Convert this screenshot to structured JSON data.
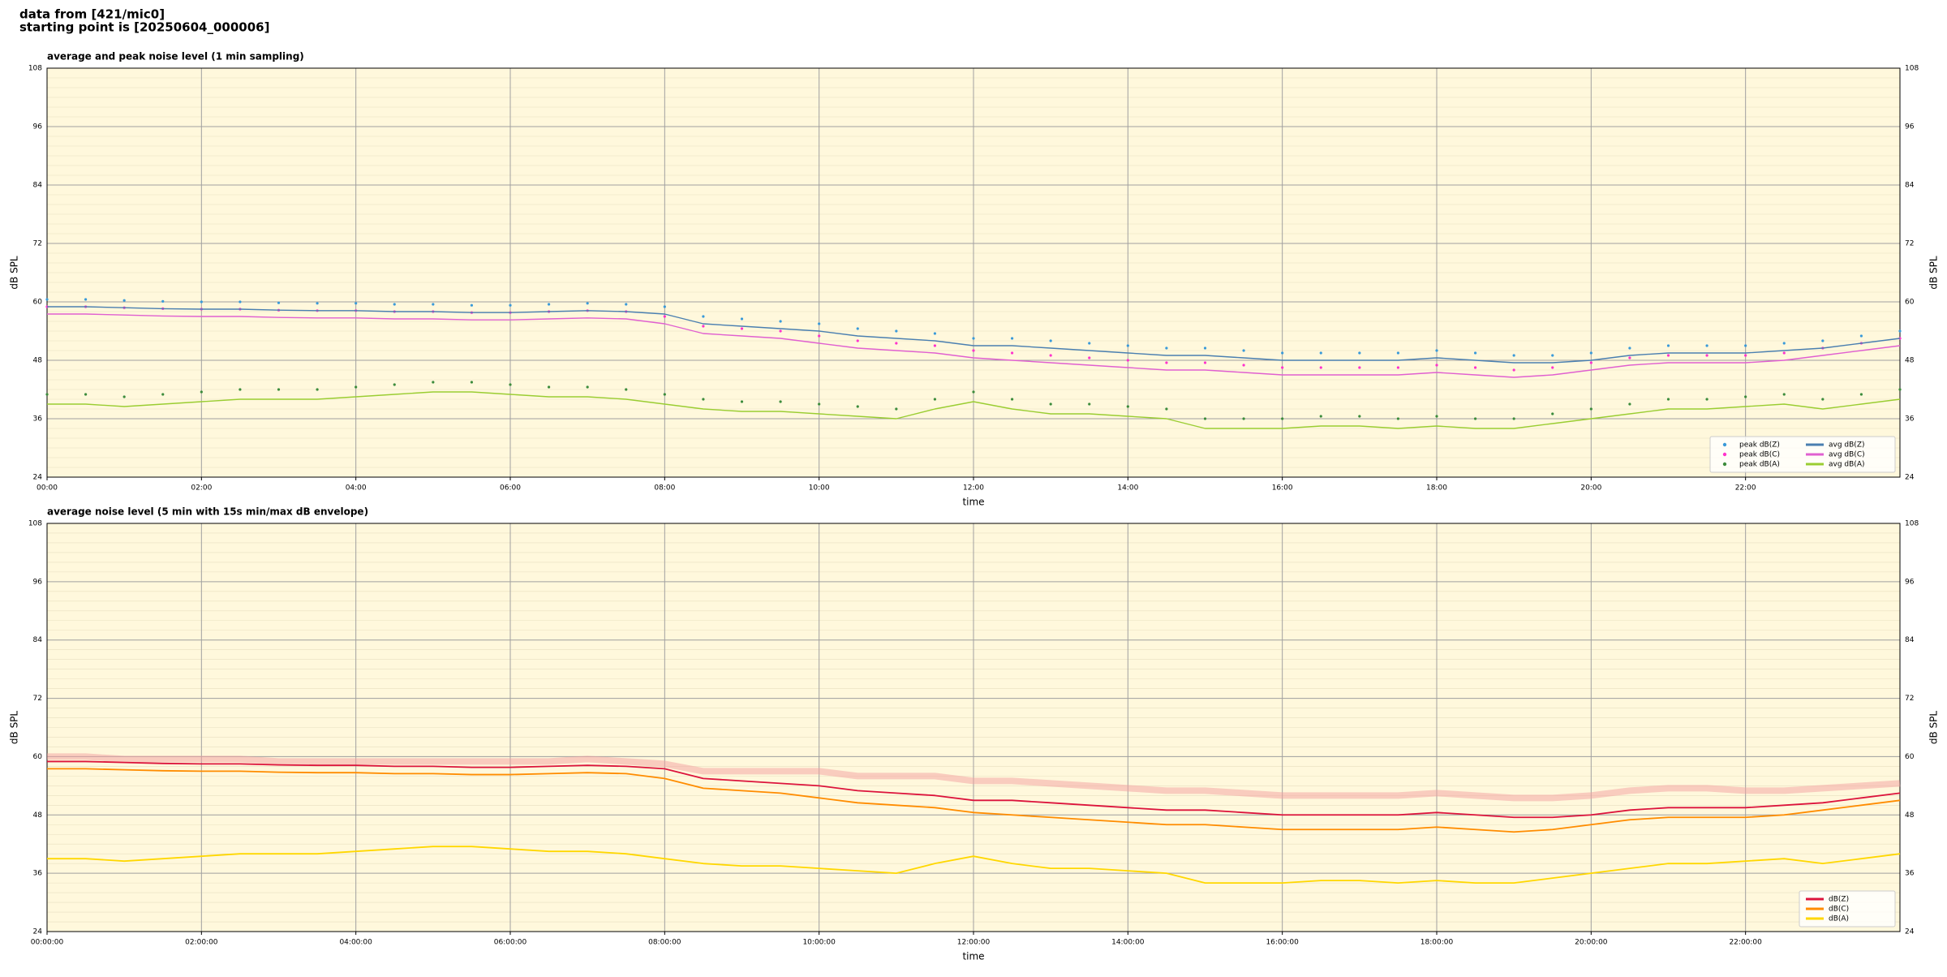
{
  "header": {
    "source": "data from [421/mic0]",
    "start": "starting point is [20250604_000006]"
  },
  "chart_data": [
    {
      "type": "line",
      "title": "average and peak noise level (1 min sampling)",
      "xlabel": "time",
      "ylabel": "dB SPL",
      "x": [
        0,
        0.5,
        1,
        1.5,
        2,
        2.5,
        3,
        3.5,
        4,
        4.5,
        5,
        5.5,
        6,
        6.5,
        7,
        7.5,
        8,
        8.5,
        9,
        9.5,
        10,
        10.5,
        11,
        11.5,
        12,
        12.5,
        13,
        13.5,
        14,
        14.5,
        15,
        15.5,
        16,
        16.5,
        17,
        17.5,
        18,
        18.5,
        19,
        19.5,
        20,
        20.5,
        21,
        21.5,
        22,
        22.5,
        23,
        23.5,
        24
      ],
      "xlim": [
        0,
        24
      ],
      "xticks": [
        {
          "value": 0,
          "label": "00:00"
        },
        {
          "value": 2,
          "label": "02:00"
        },
        {
          "value": 4,
          "label": "04:00"
        },
        {
          "value": 6,
          "label": "06:00"
        },
        {
          "value": 8,
          "label": "08:00"
        },
        {
          "value": 10,
          "label": "10:00"
        },
        {
          "value": 12,
          "label": "12:00"
        },
        {
          "value": 14,
          "label": "14:00"
        },
        {
          "value": 16,
          "label": "16:00"
        },
        {
          "value": 18,
          "label": "18:00"
        },
        {
          "value": 20,
          "label": "20:00"
        },
        {
          "value": 22,
          "label": "22:00"
        }
      ],
      "ylim": [
        24,
        108
      ],
      "yticks": [
        24,
        36,
        48,
        60,
        72,
        84,
        96,
        108
      ],
      "grid": true,
      "legend": "lower right",
      "series": [
        {
          "name": "peak dB(Z)",
          "kind": "scatter",
          "color": "#3a9ad9",
          "values": [
            60.5,
            60.5,
            60.3,
            60.1,
            60,
            60,
            59.8,
            59.7,
            59.7,
            59.5,
            59.5,
            59.3,
            59.3,
            59.5,
            59.7,
            59.5,
            59,
            57,
            56.5,
            56,
            55.5,
            54.5,
            54,
            53.5,
            52.5,
            52.5,
            52,
            51.5,
            51,
            50.5,
            50.5,
            50,
            49.5,
            49.5,
            49.5,
            49.5,
            50,
            49.5,
            49,
            49,
            49.5,
            50.5,
            51,
            51,
            51,
            51.5,
            52,
            53,
            54
          ]
        },
        {
          "name": "peak dB(C)",
          "kind": "scatter",
          "color": "#ff33cc",
          "values": [
            59,
            59,
            58.8,
            58.6,
            58.5,
            58.5,
            58.3,
            58.2,
            58.2,
            58,
            58,
            57.8,
            57.8,
            58,
            58.2,
            58,
            57,
            55,
            54.5,
            54,
            53,
            52,
            51.5,
            51,
            50,
            49.5,
            49,
            48.5,
            48,
            47.5,
            47.5,
            47,
            46.5,
            46.5,
            46.5,
            46.5,
            47,
            46.5,
            46,
            46.5,
            47.5,
            48.5,
            49,
            49,
            49,
            49.5,
            50.5,
            51.5,
            52.5
          ]
        },
        {
          "name": "peak dB(A)",
          "kind": "scatter",
          "color": "#3c8c3c",
          "values": [
            41,
            41,
            40.5,
            41,
            41.5,
            42,
            42,
            42,
            42.5,
            43,
            43.5,
            43.5,
            43,
            42.5,
            42.5,
            42,
            41,
            40,
            39.5,
            39.5,
            39,
            38.5,
            38,
            40,
            41.5,
            40,
            39,
            39,
            38.5,
            38,
            36,
            36,
            36,
            36.5,
            36.5,
            36,
            36.5,
            36,
            36,
            37,
            38,
            39,
            40,
            40,
            40.5,
            41,
            40,
            41,
            42
          ]
        },
        {
          "name": "avg dB(Z)",
          "kind": "line",
          "color": "#4a7fb0",
          "values": [
            59,
            59,
            58.8,
            58.6,
            58.5,
            58.5,
            58.3,
            58.2,
            58.2,
            58,
            58,
            57.8,
            57.8,
            58,
            58.2,
            58,
            57.5,
            55.5,
            55,
            54.5,
            54,
            53,
            52.5,
            52,
            51,
            51,
            50.5,
            50,
            49.5,
            49,
            49,
            48.5,
            48,
            48,
            48,
            48,
            48.5,
            48,
            47.5,
            47.5,
            48,
            49,
            49.5,
            49.5,
            49.5,
            50,
            50.5,
            51.5,
            52.5
          ]
        },
        {
          "name": "avg dB(C)",
          "kind": "line",
          "color": "#e060d0",
          "values": [
            57.5,
            57.5,
            57.3,
            57.1,
            57,
            57,
            56.8,
            56.7,
            56.7,
            56.5,
            56.5,
            56.3,
            56.3,
            56.5,
            56.7,
            56.5,
            55.5,
            53.5,
            53,
            52.5,
            51.5,
            50.5,
            50,
            49.5,
            48.5,
            48,
            47.5,
            47,
            46.5,
            46,
            46,
            45.5,
            45,
            45,
            45,
            45,
            45.5,
            45,
            44.5,
            45,
            46,
            47,
            47.5,
            47.5,
            47.5,
            48,
            49,
            50,
            51
          ]
        },
        {
          "name": "avg dB(A)",
          "kind": "line",
          "color": "#9acd32",
          "values": [
            39,
            39,
            38.5,
            39,
            39.5,
            40,
            40,
            40,
            40.5,
            41,
            41.5,
            41.5,
            41,
            40.5,
            40.5,
            40,
            39,
            38,
            37.5,
            37.5,
            37,
            36.5,
            36,
            38,
            39.5,
            38,
            37,
            37,
            36.5,
            36,
            34,
            34,
            34,
            34.5,
            34.5,
            34,
            34.5,
            34,
            34,
            35,
            36,
            37,
            38,
            38,
            38.5,
            39,
            38,
            39,
            40
          ]
        }
      ]
    },
    {
      "type": "line",
      "title": "average noise level (5 min with 15s min/max dB envelope)",
      "xlabel": "time",
      "ylabel": "dB SPL",
      "x": [
        0,
        0.5,
        1,
        1.5,
        2,
        2.5,
        3,
        3.5,
        4,
        4.5,
        5,
        5.5,
        6,
        6.5,
        7,
        7.5,
        8,
        8.5,
        9,
        9.5,
        10,
        10.5,
        11,
        11.5,
        12,
        12.5,
        13,
        13.5,
        14,
        14.5,
        15,
        15.5,
        16,
        16.5,
        17,
        17.5,
        18,
        18.5,
        19,
        19.5,
        20,
        20.5,
        21,
        21.5,
        22,
        22.5,
        23,
        23.5,
        24
      ],
      "xlim": [
        0,
        24
      ],
      "xticks": [
        {
          "value": 0,
          "label": "00:00:00"
        },
        {
          "value": 2,
          "label": "02:00:00"
        },
        {
          "value": 4,
          "label": "04:00:00"
        },
        {
          "value": 6,
          "label": "06:00:00"
        },
        {
          "value": 8,
          "label": "08:00:00"
        },
        {
          "value": 10,
          "label": "10:00:00"
        },
        {
          "value": 12,
          "label": "12:00:00"
        },
        {
          "value": 14,
          "label": "14:00:00"
        },
        {
          "value": 16,
          "label": "16:00:00"
        },
        {
          "value": 18,
          "label": "18:00:00"
        },
        {
          "value": 20,
          "label": "20:00:00"
        },
        {
          "value": 22,
          "label": "22:00:00"
        }
      ],
      "ylim": [
        24,
        108
      ],
      "yticks": [
        24,
        36,
        48,
        60,
        72,
        84,
        96,
        108
      ],
      "grid": true,
      "legend": "lower right",
      "envelope": {
        "color": "#f4a0a0",
        "values": [
          60,
          60,
          59.5,
          59.5,
          59.5,
          59.5,
          59,
          59,
          59,
          59,
          59,
          59,
          59,
          59,
          59.5,
          59,
          58.5,
          57,
          57,
          57,
          57,
          56,
          56,
          56,
          55,
          55,
          54.5,
          54,
          53.5,
          53,
          53,
          52.5,
          52,
          52,
          52,
          52,
          52.5,
          52,
          51.5,
          51.5,
          52,
          53,
          53.5,
          53.5,
          53,
          53,
          53.5,
          54,
          54.5
        ]
      },
      "series": [
        {
          "name": "dB(Z)",
          "kind": "line",
          "color": "#dc143c",
          "values": [
            59,
            59,
            58.8,
            58.6,
            58.5,
            58.5,
            58.3,
            58.2,
            58.2,
            58,
            58,
            57.8,
            57.8,
            58,
            58.2,
            58,
            57.5,
            55.5,
            55,
            54.5,
            54,
            53,
            52.5,
            52,
            51,
            51,
            50.5,
            50,
            49.5,
            49,
            49,
            48.5,
            48,
            48,
            48,
            48,
            48.5,
            48,
            47.5,
            47.5,
            48,
            49,
            49.5,
            49.5,
            49.5,
            50,
            50.5,
            51.5,
            52.5
          ]
        },
        {
          "name": "dB(C)",
          "kind": "line",
          "color": "#ff8c00",
          "values": [
            57.5,
            57.5,
            57.3,
            57.1,
            57,
            57,
            56.8,
            56.7,
            56.7,
            56.5,
            56.5,
            56.3,
            56.3,
            56.5,
            56.7,
            56.5,
            55.5,
            53.5,
            53,
            52.5,
            51.5,
            50.5,
            50,
            49.5,
            48.5,
            48,
            47.5,
            47,
            46.5,
            46,
            46,
            45.5,
            45,
            45,
            45,
            45,
            45.5,
            45,
            44.5,
            45,
            46,
            47,
            47.5,
            47.5,
            47.5,
            48,
            49,
            50,
            51
          ]
        },
        {
          "name": "dB(A)",
          "kind": "line",
          "color": "#ffd700",
          "values": [
            39,
            39,
            38.5,
            39,
            39.5,
            40,
            40,
            40,
            40.5,
            41,
            41.5,
            41.5,
            41,
            40.5,
            40.5,
            40,
            39,
            38,
            37.5,
            37.5,
            37,
            36.5,
            36,
            38,
            39.5,
            38,
            37,
            37,
            36.5,
            36,
            34,
            34,
            34,
            34.5,
            34.5,
            34,
            34.5,
            34,
            34,
            35,
            36,
            37,
            38,
            38,
            38.5,
            39,
            38,
            39,
            40
          ]
        }
      ]
    }
  ]
}
